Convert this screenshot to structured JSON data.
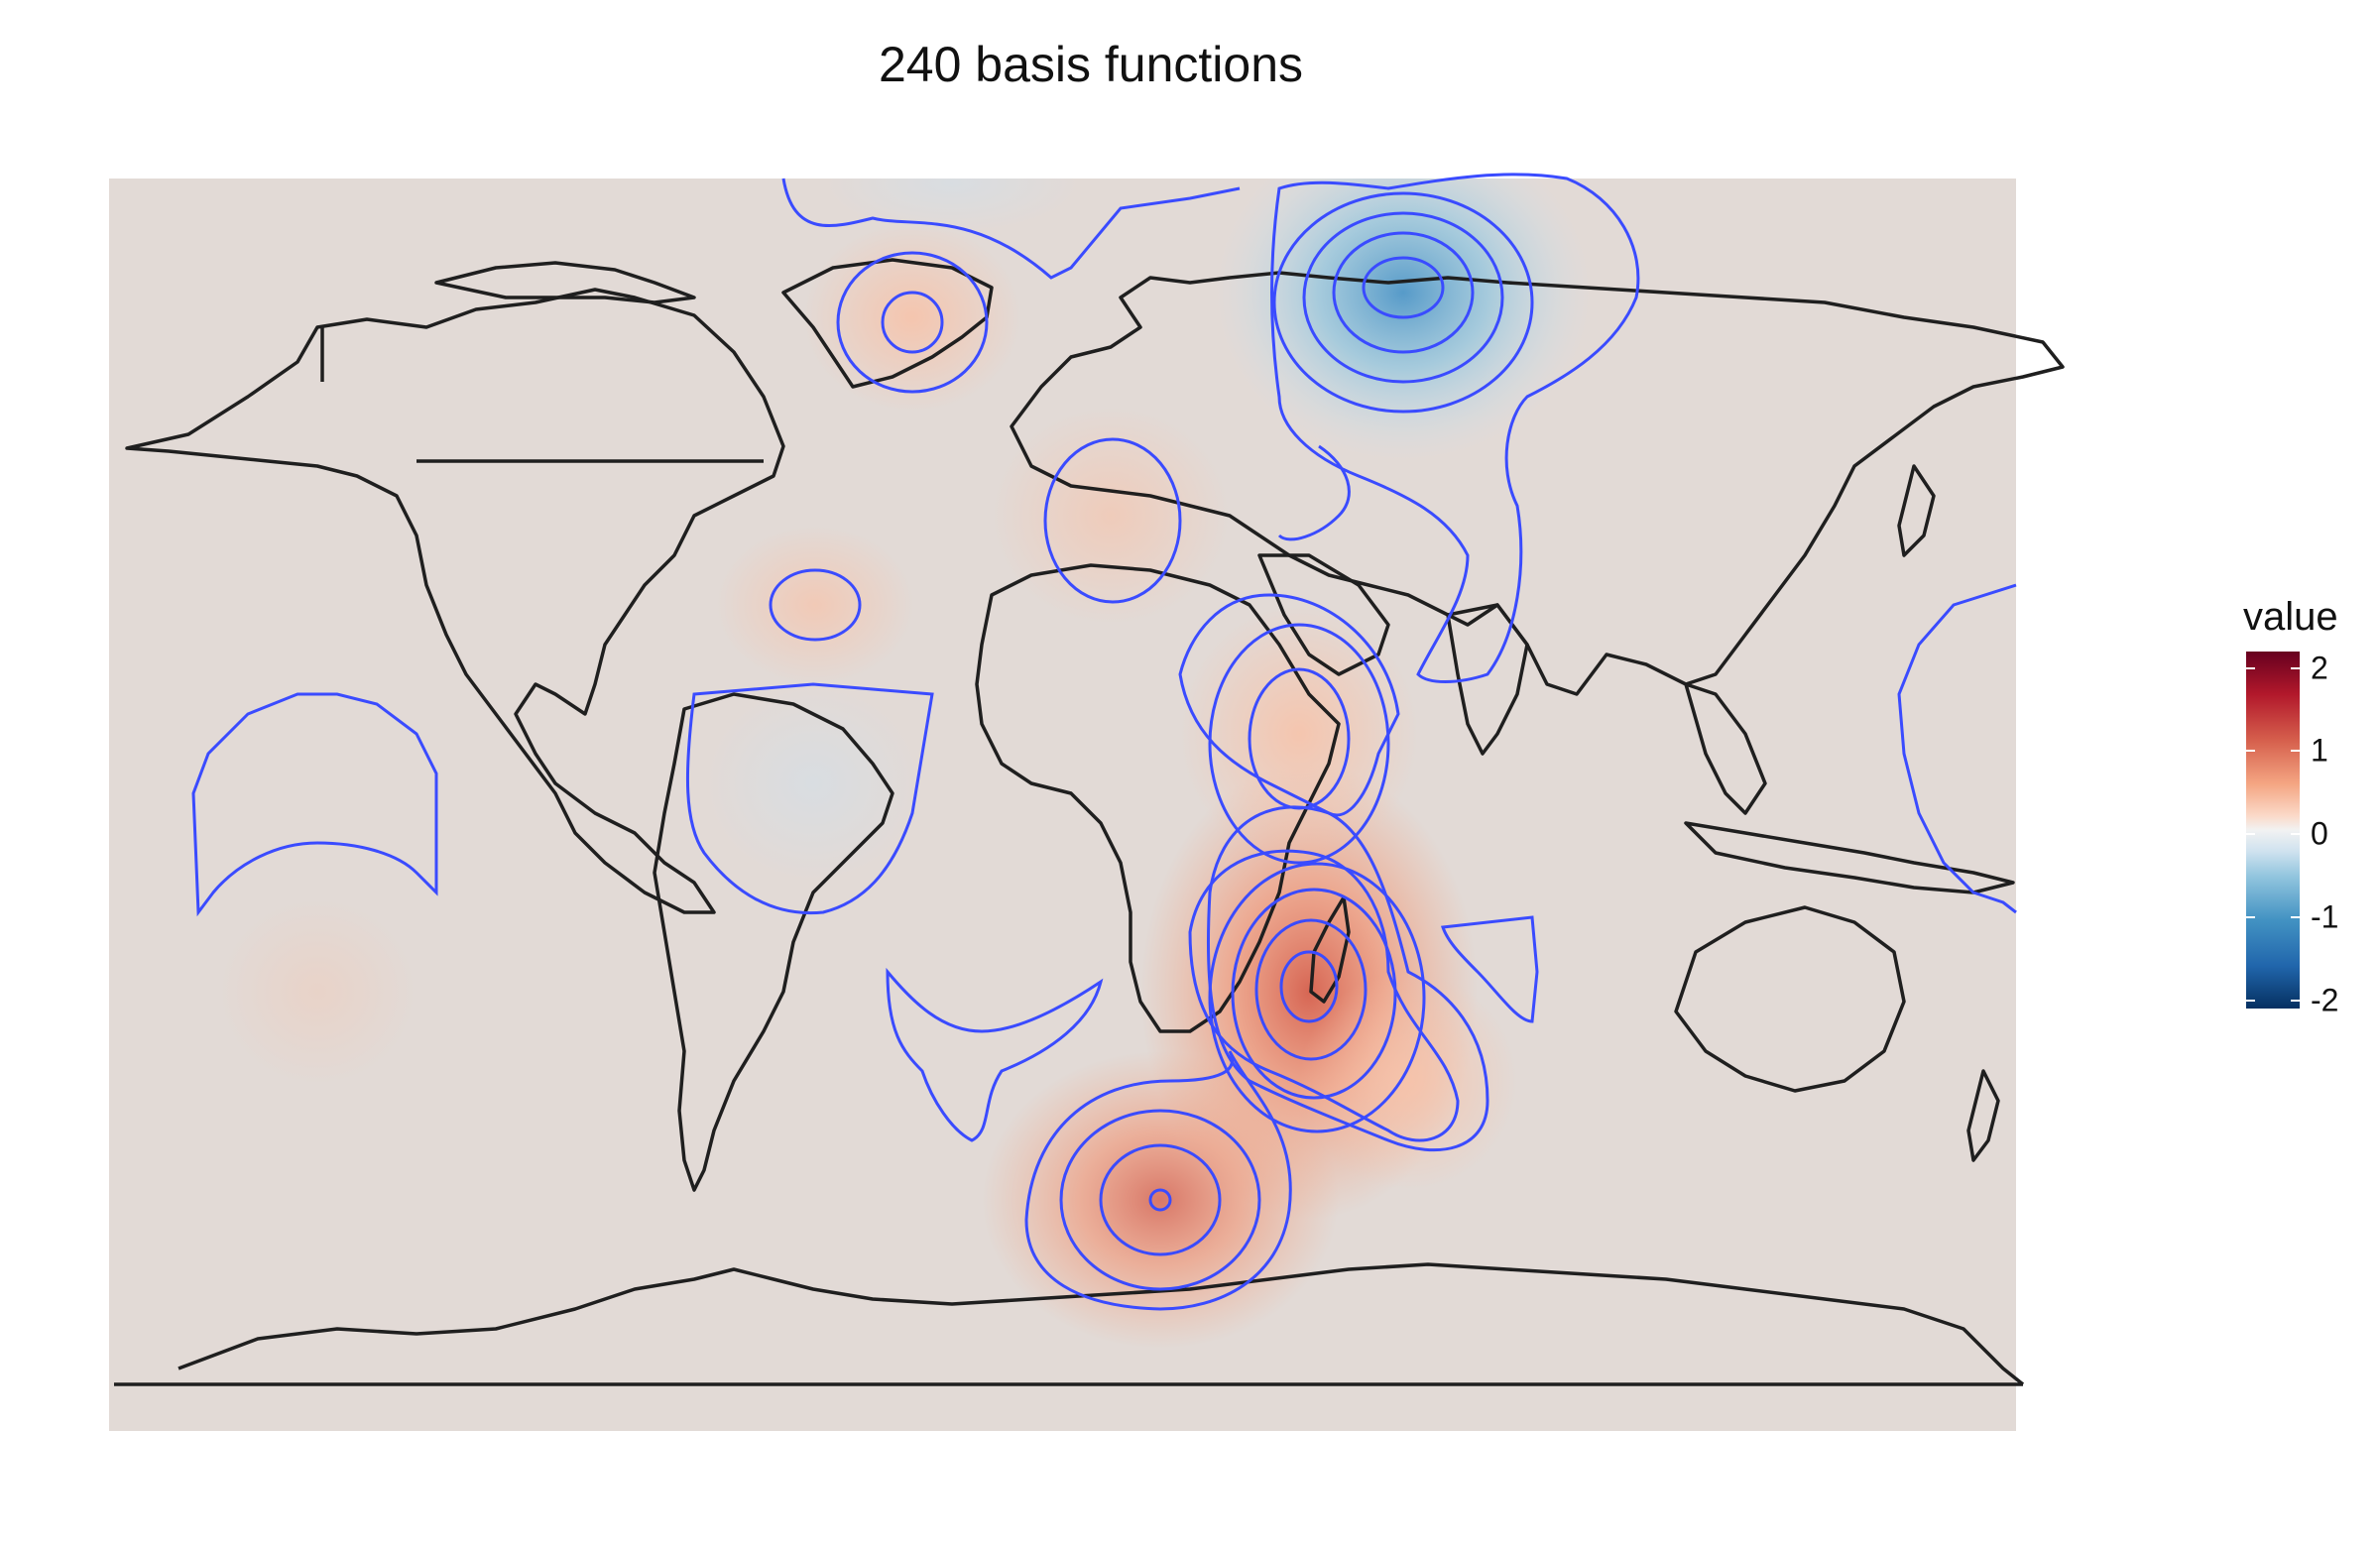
{
  "title": "240 basis functions",
  "legend": {
    "title": "value",
    "ticks": [
      {
        "label": "2",
        "value": 2
      },
      {
        "label": "1",
        "value": 1
      },
      {
        "label": "0",
        "value": 0
      },
      {
        "label": "-1",
        "value": -1
      },
      {
        "label": "-2",
        "value": -2
      }
    ],
    "range": [
      -2.1,
      2.2
    ]
  },
  "map": {
    "projection": "equirectangular",
    "background_color": "#e2dad6",
    "coastline_color": "#1f1f1f",
    "contour_color": "#3a4bff",
    "color_scale": "RdBu (diverging, red high, blue low)",
    "anomalies": [
      {
        "lon": 45,
        "lat": -17,
        "value": 1.05,
        "shape": "elongated"
      },
      {
        "lon": 35,
        "lat": -57,
        "value": 0.8
      },
      {
        "lon": 76,
        "lat": 64,
        "value": -0.75
      },
      {
        "lon": -46,
        "lat": 70,
        "value": 0.5
      },
      {
        "lon": 45,
        "lat": 9,
        "value": 0.45
      },
      {
        "lon": -54,
        "lat": 30,
        "value": 0.3
      },
      {
        "lon": 10,
        "lat": 42,
        "value": 0.25
      },
      {
        "lon": -146,
        "lat": -20,
        "value": 0.1
      },
      {
        "lon": -55,
        "lat": 0,
        "value": -0.1
      }
    ]
  }
}
